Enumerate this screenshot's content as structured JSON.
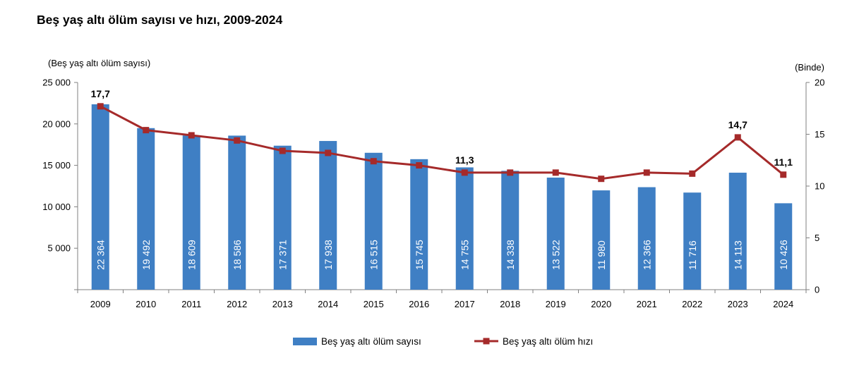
{
  "page": {
    "title": "Beş yaş altı ölüm sayısı ve hızı, 2009-2024"
  },
  "chart_data": {
    "type": "bar+line",
    "title": "Beş yaş altı ölüm sayısı ve hızı, 2009-2024",
    "categories": [
      "2009",
      "2010",
      "2011",
      "2012",
      "2013",
      "2014",
      "2015",
      "2016",
      "2017",
      "2018",
      "2019",
      "2020",
      "2021",
      "2022",
      "2023",
      "2024"
    ],
    "left_axis": {
      "label": "(Beş yaş altı ölüm sayısı)",
      "range": [
        0,
        25000
      ],
      "ticks": [
        0,
        5000,
        10000,
        15000,
        20000,
        25000
      ],
      "tick_labels": [
        "",
        "5 000",
        "10 000",
        "15 000",
        "20 000",
        "25 000"
      ]
    },
    "right_axis": {
      "label": "(Binde)",
      "range": [
        0,
        20
      ],
      "ticks": [
        0,
        5,
        10,
        15,
        20
      ],
      "tick_labels": [
        "0",
        "5",
        "10",
        "15",
        "20"
      ]
    },
    "series": [
      {
        "name": "Beş yaş altı ölüm sayısı",
        "type": "bar",
        "axis": "left",
        "color": "#3f7fc4",
        "values": [
          22364,
          19492,
          18609,
          18586,
          17371,
          17938,
          16515,
          15745,
          14755,
          14338,
          13522,
          11980,
          12366,
          11716,
          14113,
          10426
        ],
        "labels": [
          "22 364",
          "19 492",
          "18 609",
          "18 586",
          "17 371",
          "17 938",
          "16 515",
          "15 745",
          "14 755",
          "14 338",
          "13 522",
          "11 980",
          "12 366",
          "11 716",
          "14 113",
          "10 426"
        ]
      },
      {
        "name": "Beş yaş altı ölüm hızı",
        "type": "line",
        "axis": "right",
        "color": "#a52a2a",
        "values": [
          17.7,
          15.4,
          14.9,
          14.4,
          13.4,
          13.2,
          12.4,
          12.0,
          11.3,
          11.3,
          11.3,
          10.7,
          11.3,
          11.2,
          14.7,
          11.1
        ],
        "annotations": [
          {
            "index": 0,
            "text": "17,7"
          },
          {
            "index": 8,
            "text": "11,3"
          },
          {
            "index": 14,
            "text": "14,7"
          },
          {
            "index": 15,
            "text": "11,1"
          }
        ]
      }
    ],
    "legend": {
      "position": "bottom"
    }
  }
}
